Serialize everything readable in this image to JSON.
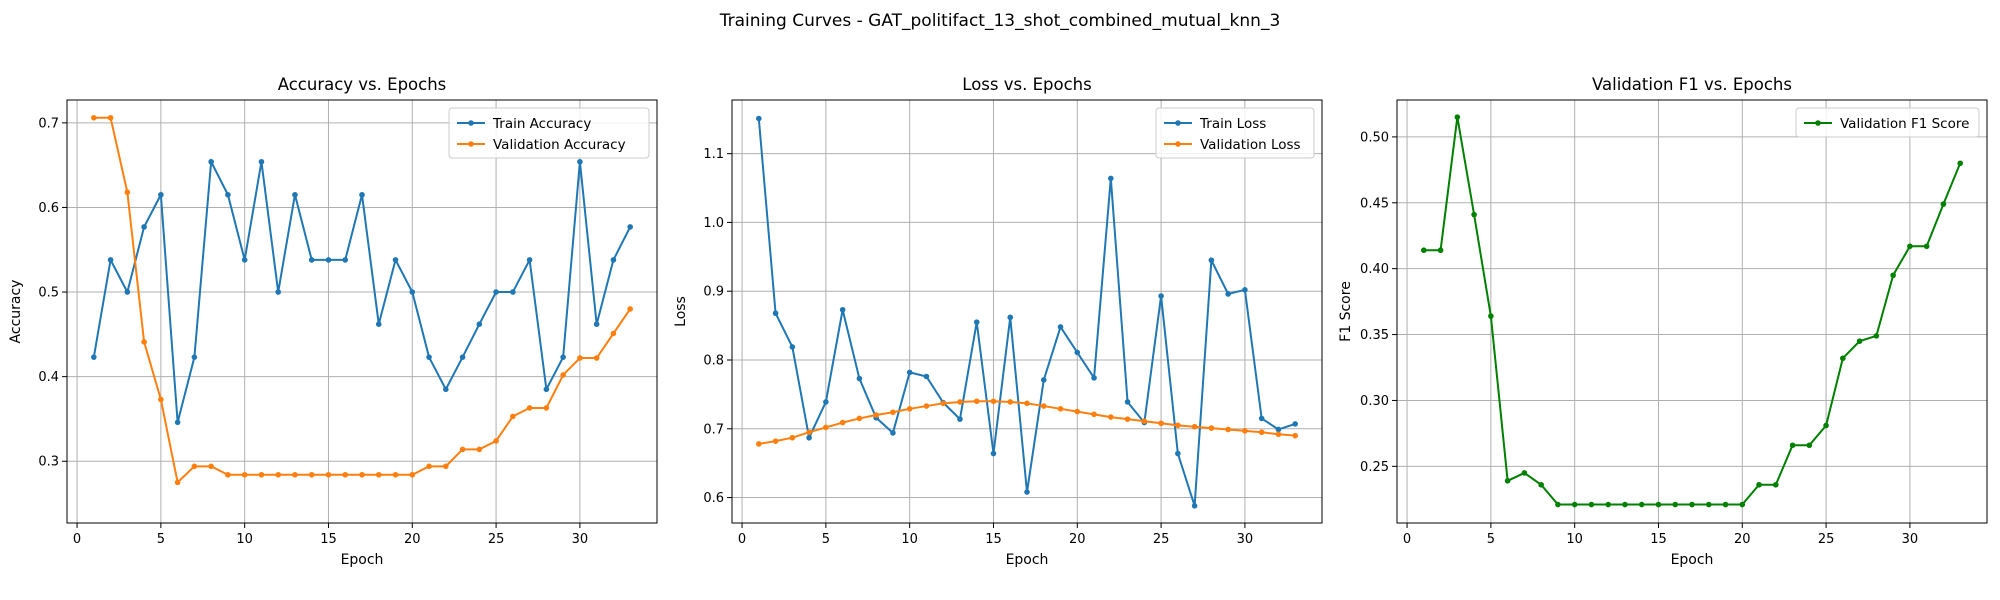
{
  "suptitle": "Training Curves - GAT_politifact_13_shot_combined_mutual_knn_3",
  "colors": {
    "train": "#1f77b4",
    "validation": "#ff7f0e",
    "f1": "#008000",
    "grid": "#b0b0b0"
  },
  "chart_data": [
    {
      "type": "line",
      "title": "Accuracy vs. Epochs",
      "xlabel": "Epoch",
      "ylabel": "Accuracy",
      "xlim": [
        -0.6,
        34.6
      ],
      "ylim": [
        0.227,
        0.727
      ],
      "xticks": [
        0,
        5,
        10,
        15,
        20,
        25,
        30
      ],
      "yticks": [
        0.3,
        0.4,
        0.5,
        0.6,
        0.7
      ],
      "ytick_labels": [
        "0.3",
        "0.4",
        "0.5",
        "0.6",
        "0.7"
      ],
      "grid": true,
      "legend_position": "top-right",
      "x": [
        1,
        2,
        3,
        4,
        5,
        6,
        7,
        8,
        9,
        10,
        11,
        12,
        13,
        14,
        15,
        16,
        17,
        18,
        19,
        20,
        21,
        22,
        23,
        24,
        25,
        26,
        27,
        28,
        29,
        30,
        31,
        32,
        33
      ],
      "series": [
        {
          "name": "Train Accuracy",
          "color": "#1f77b4",
          "values": [
            0.423,
            0.538,
            0.5,
            0.577,
            0.615,
            0.346,
            0.423,
            0.654,
            0.615,
            0.538,
            0.654,
            0.5,
            0.615,
            0.538,
            0.538,
            0.538,
            0.615,
            0.462,
            0.538,
            0.5,
            0.423,
            0.385,
            0.423,
            0.462,
            0.5,
            0.5,
            0.538,
            0.385,
            0.423,
            0.654,
            0.462,
            0.538,
            0.577
          ]
        },
        {
          "name": "Validation Accuracy",
          "color": "#ff7f0e",
          "values": [
            0.706,
            0.706,
            0.618,
            0.441,
            0.373,
            0.275,
            0.294,
            0.294,
            0.284,
            0.284,
            0.284,
            0.284,
            0.284,
            0.284,
            0.284,
            0.284,
            0.284,
            0.284,
            0.284,
            0.284,
            0.294,
            0.294,
            0.314,
            0.314,
            0.324,
            0.353,
            0.363,
            0.363,
            0.402,
            0.422,
            0.422,
            0.451,
            0.48
          ]
        }
      ]
    },
    {
      "type": "line",
      "title": "Loss vs. Epochs",
      "xlabel": "Epoch",
      "ylabel": "Loss",
      "xlim": [
        -0.6,
        34.6
      ],
      "ylim": [
        0.563,
        1.178
      ],
      "xticks": [
        0,
        5,
        10,
        15,
        20,
        25,
        30
      ],
      "yticks": [
        0.6,
        0.7,
        0.8,
        0.9,
        1.0,
        1.1
      ],
      "ytick_labels": [
        "0.6",
        "0.7",
        "0.8",
        "0.9",
        "1.0",
        "1.1"
      ],
      "grid": true,
      "legend_position": "top-right",
      "x": [
        1,
        2,
        3,
        4,
        5,
        6,
        7,
        8,
        9,
        10,
        11,
        12,
        13,
        14,
        15,
        16,
        17,
        18,
        19,
        20,
        21,
        22,
        23,
        24,
        25,
        26,
        27,
        28,
        29,
        30,
        31,
        32,
        33
      ],
      "series": [
        {
          "name": "Train Loss",
          "color": "#1f77b4",
          "values": [
            1.151,
            0.868,
            0.819,
            0.687,
            0.739,
            0.873,
            0.773,
            0.716,
            0.694,
            0.782,
            0.776,
            0.738,
            0.714,
            0.855,
            0.664,
            0.862,
            0.608,
            0.771,
            0.848,
            0.811,
            0.774,
            1.064,
            0.739,
            0.709,
            0.893,
            0.664,
            0.588,
            0.945,
            0.896,
            0.902,
            0.715,
            0.699,
            0.707
          ]
        },
        {
          "name": "Validation Loss",
          "color": "#ff7f0e",
          "values": [
            0.678,
            0.682,
            0.687,
            0.695,
            0.702,
            0.709,
            0.715,
            0.72,
            0.724,
            0.729,
            0.733,
            0.737,
            0.739,
            0.74,
            0.74,
            0.739,
            0.737,
            0.733,
            0.729,
            0.725,
            0.721,
            0.717,
            0.714,
            0.711,
            0.708,
            0.705,
            0.703,
            0.701,
            0.699,
            0.697,
            0.695,
            0.692,
            0.69
          ]
        }
      ]
    },
    {
      "type": "line",
      "title": "Validation F1 vs. Epochs",
      "xlabel": "Epoch",
      "ylabel": "F1 Score",
      "xlim": [
        -0.6,
        34.6
      ],
      "ylim": [
        0.207,
        0.528
      ],
      "xticks": [
        0,
        5,
        10,
        15,
        20,
        25,
        30
      ],
      "yticks": [
        0.25,
        0.3,
        0.35,
        0.4,
        0.45,
        0.5
      ],
      "ytick_labels": [
        "0.25",
        "0.30",
        "0.35",
        "0.40",
        "0.45",
        "0.50"
      ],
      "grid": true,
      "legend_position": "top-right",
      "x": [
        1,
        2,
        3,
        4,
        5,
        6,
        7,
        8,
        9,
        10,
        11,
        12,
        13,
        14,
        15,
        16,
        17,
        18,
        19,
        20,
        21,
        22,
        23,
        24,
        25,
        26,
        27,
        28,
        29,
        30,
        31,
        32,
        33
      ],
      "series": [
        {
          "name": "Validation F1 Score",
          "color": "#008000",
          "values": [
            0.414,
            0.414,
            0.515,
            0.441,
            0.364,
            0.239,
            0.245,
            0.236,
            0.221,
            0.221,
            0.221,
            0.221,
            0.221,
            0.221,
            0.221,
            0.221,
            0.221,
            0.221,
            0.221,
            0.221,
            0.236,
            0.236,
            0.266,
            0.266,
            0.281,
            0.332,
            0.345,
            0.349,
            0.395,
            0.417,
            0.417,
            0.449,
            0.48
          ]
        }
      ]
    }
  ]
}
